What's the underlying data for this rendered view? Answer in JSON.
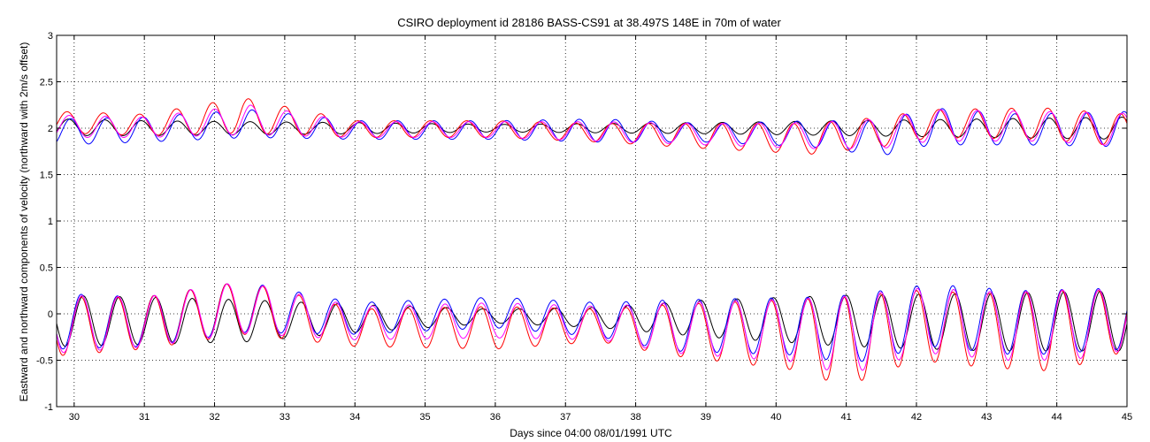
{
  "chart_data": {
    "type": "line",
    "title": "CSIRO deployment id 28186 BASS-CS91 at 38.497S 148E in 70m of water",
    "xlabel": "Days since 04:00 08/01/1991 UTC",
    "ylabel": "Eastward  and northward components of velocity  (northward with 2m/s offset)",
    "xlim": [
      29.75,
      45
    ],
    "ylim": [
      -1,
      3
    ],
    "xticks": [
      30,
      31,
      32,
      33,
      34,
      35,
      36,
      37,
      38,
      39,
      40,
      41,
      42,
      43,
      44,
      45
    ],
    "xtick_labels": [
      "30",
      "31",
      "32",
      "33",
      "34",
      "35",
      "36",
      "37",
      "38",
      "39",
      "40",
      "41",
      "42",
      "43",
      "44",
      "45"
    ],
    "yticks": [
      -1,
      -0.5,
      0,
      0.5,
      1,
      1.5,
      2,
      2.5,
      3
    ],
    "ytick_labels": [
      "-1",
      "-0.5",
      "0",
      "0.5",
      "1",
      "1.5",
      "2",
      "2.5",
      "3"
    ],
    "grid": true,
    "period_days": 0.5175,
    "series": [
      {
        "name": "northward (offset +2) - black",
        "color": "#000000",
        "offset": 2,
        "phase_day": 29.92,
        "peaks": [
          {
            "day": 29.8,
            "hi": 0.1,
            "lo": -0.08
          },
          {
            "day": 31.0,
            "hi": 0.08,
            "lo": -0.08
          },
          {
            "day": 32.5,
            "hi": 0.07,
            "lo": -0.07
          },
          {
            "day": 34.0,
            "hi": 0.06,
            "lo": -0.06
          },
          {
            "day": 36.0,
            "hi": 0.04,
            "lo": -0.04
          },
          {
            "day": 37.5,
            "hi": 0.05,
            "lo": -0.05
          },
          {
            "day": 39.0,
            "hi": 0.06,
            "lo": -0.06
          },
          {
            "day": 41.0,
            "hi": 0.08,
            "lo": -0.08
          },
          {
            "day": 43.0,
            "hi": 0.1,
            "lo": -0.1
          },
          {
            "day": 45.0,
            "hi": 0.12,
            "lo": -0.12
          }
        ]
      },
      {
        "name": "northward (offset +2) - blue",
        "color": "#0000ff",
        "offset": 2,
        "phase_day": 29.95,
        "peaks": [
          {
            "day": 29.8,
            "hi": 0.1,
            "lo": -0.18
          },
          {
            "day": 31.0,
            "hi": 0.12,
            "lo": -0.15
          },
          {
            "day": 32.5,
            "hi": 0.2,
            "lo": -0.1
          },
          {
            "day": 34.0,
            "hi": 0.08,
            "lo": -0.12
          },
          {
            "day": 36.0,
            "hi": 0.08,
            "lo": -0.12
          },
          {
            "day": 37.5,
            "hi": 0.1,
            "lo": -0.15
          },
          {
            "day": 39.0,
            "hi": 0.05,
            "lo": -0.15
          },
          {
            "day": 40.5,
            "hi": 0.08,
            "lo": -0.2
          },
          {
            "day": 41.5,
            "hi": 0.08,
            "lo": -0.3
          },
          {
            "day": 42.2,
            "hi": 0.22,
            "lo": -0.18
          },
          {
            "day": 43.5,
            "hi": 0.15,
            "lo": -0.18
          },
          {
            "day": 45.0,
            "hi": 0.18,
            "lo": -0.2
          }
        ]
      },
      {
        "name": "northward (offset +2) - red",
        "color": "#ff0000",
        "offset": 2,
        "phase_day": 29.9,
        "peaks": [
          {
            "day": 29.8,
            "hi": 0.18,
            "lo": -0.05
          },
          {
            "day": 31.0,
            "hi": 0.15,
            "lo": -0.08
          },
          {
            "day": 32.4,
            "hi": 0.33,
            "lo": -0.05
          },
          {
            "day": 34.0,
            "hi": 0.08,
            "lo": -0.1
          },
          {
            "day": 36.0,
            "hi": 0.08,
            "lo": -0.1
          },
          {
            "day": 37.5,
            "hi": 0.05,
            "lo": -0.15
          },
          {
            "day": 39.0,
            "hi": 0.05,
            "lo": -0.22
          },
          {
            "day": 40.5,
            "hi": 0.05,
            "lo": -0.28
          },
          {
            "day": 41.5,
            "hi": 0.12,
            "lo": -0.2
          },
          {
            "day": 42.2,
            "hi": 0.2,
            "lo": -0.1
          },
          {
            "day": 43.8,
            "hi": 0.22,
            "lo": -0.12
          },
          {
            "day": 45.0,
            "hi": 0.15,
            "lo": -0.2
          }
        ]
      },
      {
        "name": "northward (offset +2) - magenta",
        "color": "#ff00ff",
        "offset": 2,
        "phase_day": 29.93,
        "peaks": [
          {
            "day": 29.8,
            "hi": 0.14,
            "lo": -0.1
          },
          {
            "day": 31.0,
            "hi": 0.12,
            "lo": -0.1
          },
          {
            "day": 32.5,
            "hi": 0.25,
            "lo": -0.07
          },
          {
            "day": 34.0,
            "hi": 0.07,
            "lo": -0.1
          },
          {
            "day": 36.0,
            "hi": 0.07,
            "lo": -0.1
          },
          {
            "day": 37.5,
            "hi": 0.07,
            "lo": -0.14
          },
          {
            "day": 39.0,
            "hi": 0.05,
            "lo": -0.18
          },
          {
            "day": 40.5,
            "hi": 0.06,
            "lo": -0.22
          },
          {
            "day": 41.5,
            "hi": 0.1,
            "lo": -0.22
          },
          {
            "day": 42.2,
            "hi": 0.2,
            "lo": -0.14
          },
          {
            "day": 43.8,
            "hi": 0.18,
            "lo": -0.14
          },
          {
            "day": 45.0,
            "hi": 0.16,
            "lo": -0.2
          }
        ]
      },
      {
        "name": "eastward - black",
        "color": "#000000",
        "offset": 0,
        "phase_day": 30.13,
        "peaks": [
          {
            "day": 29.8,
            "hi": 0.2,
            "lo": -0.35
          },
          {
            "day": 31.0,
            "hi": 0.18,
            "lo": -0.33
          },
          {
            "day": 32.5,
            "hi": 0.15,
            "lo": -0.3
          },
          {
            "day": 34.0,
            "hi": 0.1,
            "lo": -0.2
          },
          {
            "day": 36.0,
            "hi": 0.05,
            "lo": -0.1
          },
          {
            "day": 37.5,
            "hi": 0.07,
            "lo": -0.15
          },
          {
            "day": 39.0,
            "hi": 0.15,
            "lo": -0.25
          },
          {
            "day": 41.0,
            "hi": 0.2,
            "lo": -0.35
          },
          {
            "day": 43.0,
            "hi": 0.22,
            "lo": -0.4
          },
          {
            "day": 45.0,
            "hi": 0.25,
            "lo": -0.4
          }
        ]
      },
      {
        "name": "eastward - blue",
        "color": "#0000ff",
        "offset": 0,
        "phase_day": 30.1,
        "peaks": [
          {
            "day": 29.8,
            "hi": 0.22,
            "lo": -0.38
          },
          {
            "day": 31.0,
            "hi": 0.18,
            "lo": -0.35
          },
          {
            "day": 32.4,
            "hi": 0.35,
            "lo": -0.2
          },
          {
            "day": 34.0,
            "hi": 0.12,
            "lo": -0.22
          },
          {
            "day": 36.0,
            "hi": 0.18,
            "lo": -0.15
          },
          {
            "day": 37.5,
            "hi": 0.12,
            "lo": -0.25
          },
          {
            "day": 38.5,
            "hi": 0.15,
            "lo": -0.4
          },
          {
            "day": 40.5,
            "hi": 0.18,
            "lo": -0.45
          },
          {
            "day": 41.0,
            "hi": 0.2,
            "lo": -0.55
          },
          {
            "day": 42.2,
            "hi": 0.32,
            "lo": -0.35
          },
          {
            "day": 43.5,
            "hi": 0.25,
            "lo": -0.45
          },
          {
            "day": 45.0,
            "hi": 0.28,
            "lo": -0.38
          }
        ]
      },
      {
        "name": "eastward - red",
        "color": "#ff0000",
        "offset": 0,
        "phase_day": 30.1,
        "peaks": [
          {
            "day": 29.8,
            "hi": 0.18,
            "lo": -0.45
          },
          {
            "day": 31.0,
            "hi": 0.18,
            "lo": -0.38
          },
          {
            "day": 32.4,
            "hi": 0.35,
            "lo": -0.22
          },
          {
            "day": 34.0,
            "hi": 0.05,
            "lo": -0.35
          },
          {
            "day": 36.0,
            "hi": 0.08,
            "lo": -0.38
          },
          {
            "day": 37.5,
            "hi": 0.05,
            "lo": -0.3
          },
          {
            "day": 38.5,
            "hi": 0.1,
            "lo": -0.45
          },
          {
            "day": 40.2,
            "hi": 0.15,
            "lo": -0.6
          },
          {
            "day": 41.0,
            "hi": 0.18,
            "lo": -0.78
          },
          {
            "day": 42.0,
            "hi": 0.25,
            "lo": -0.5
          },
          {
            "day": 43.0,
            "hi": 0.22,
            "lo": -0.58
          },
          {
            "day": 44.0,
            "hi": 0.25,
            "lo": -0.62
          },
          {
            "day": 45.0,
            "hi": 0.25,
            "lo": -0.4
          }
        ]
      },
      {
        "name": "eastward - magenta",
        "color": "#ff00ff",
        "offset": 0,
        "phase_day": 30.11,
        "peaks": [
          {
            "day": 29.8,
            "hi": 0.2,
            "lo": -0.42
          },
          {
            "day": 31.0,
            "hi": 0.18,
            "lo": -0.36
          },
          {
            "day": 32.4,
            "hi": 0.35,
            "lo": -0.21
          },
          {
            "day": 34.0,
            "hi": 0.08,
            "lo": -0.28
          },
          {
            "day": 36.0,
            "hi": 0.12,
            "lo": -0.26
          },
          {
            "day": 37.5,
            "hi": 0.08,
            "lo": -0.28
          },
          {
            "day": 38.5,
            "hi": 0.12,
            "lo": -0.42
          },
          {
            "day": 40.3,
            "hi": 0.16,
            "lo": -0.52
          },
          {
            "day": 41.0,
            "hi": 0.19,
            "lo": -0.66
          },
          {
            "day": 42.1,
            "hi": 0.28,
            "lo": -0.42
          },
          {
            "day": 43.3,
            "hi": 0.23,
            "lo": -0.5
          },
          {
            "day": 44.2,
            "hi": 0.26,
            "lo": -0.5
          },
          {
            "day": 45.0,
            "hi": 0.26,
            "lo": -0.39
          }
        ]
      }
    ]
  }
}
